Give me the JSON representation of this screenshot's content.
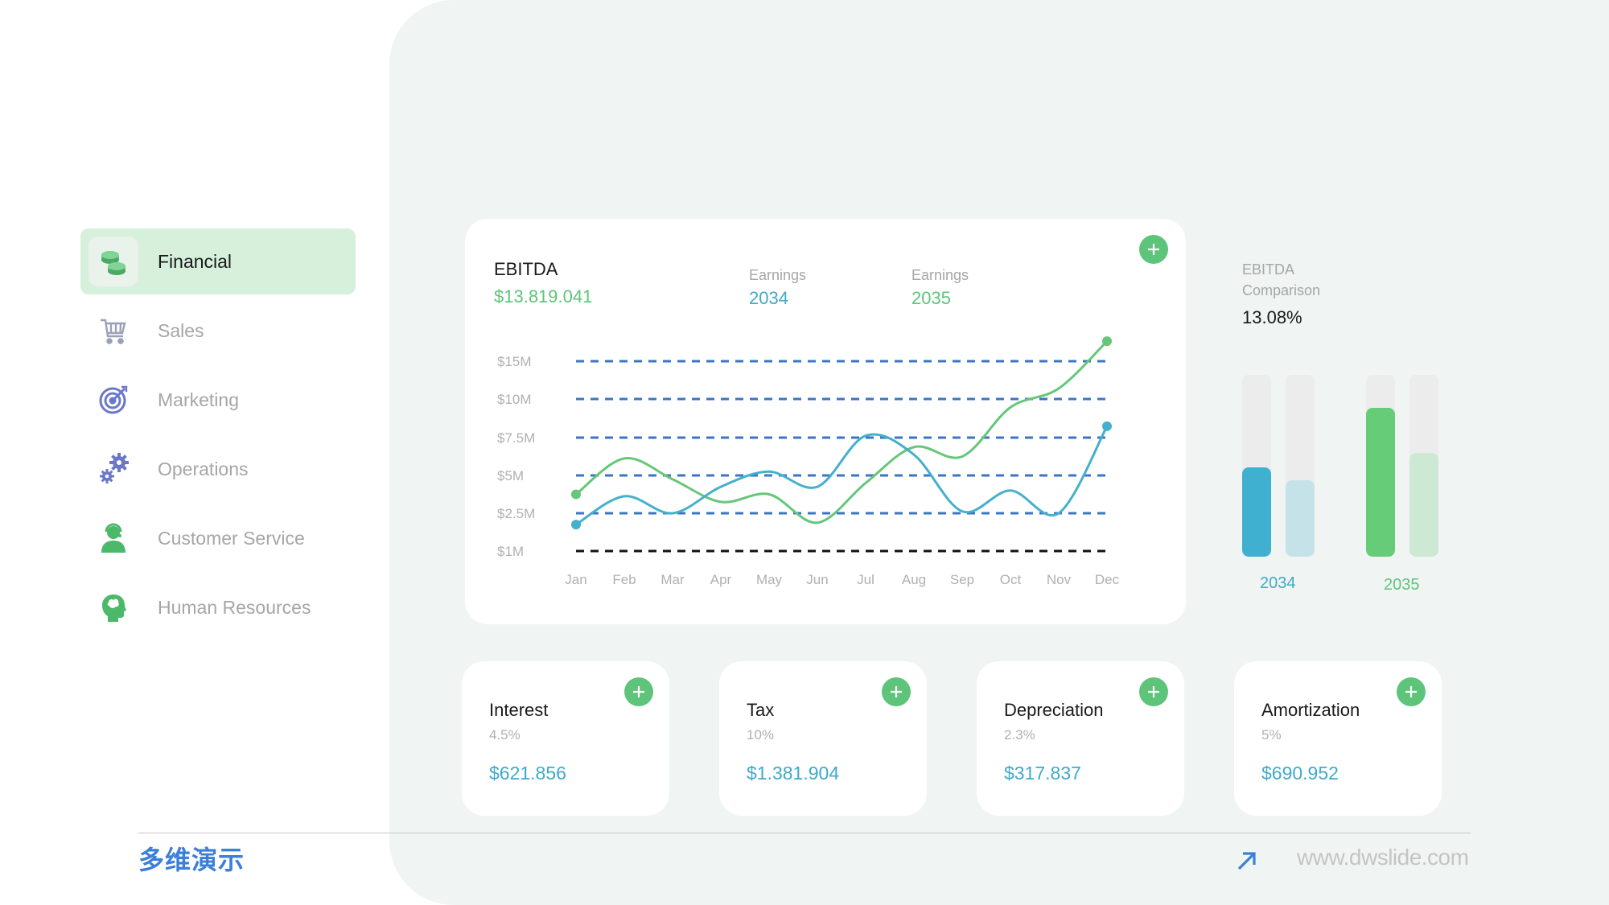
{
  "sidebar": {
    "items": [
      {
        "label": "Financial",
        "icon": "coins-icon",
        "active": true
      },
      {
        "label": "Sales",
        "icon": "cart-icon",
        "active": false
      },
      {
        "label": "Marketing",
        "icon": "target-icon",
        "active": false
      },
      {
        "label": "Operations",
        "icon": "gears-icon",
        "active": false
      },
      {
        "label": "Customer Service",
        "icon": "support-agent-icon",
        "active": false
      },
      {
        "label": "Human Resources",
        "icon": "head-brain-icon",
        "active": false
      }
    ]
  },
  "ebitda_card": {
    "title": "EBITDA",
    "value": "$13.819.041",
    "earnings_2034_label": "Earnings",
    "earnings_2034_year": "2034",
    "earnings_2035_label": "Earnings",
    "earnings_2035_year": "2035"
  },
  "chart_data": {
    "type": "line",
    "x": [
      "Jan",
      "Feb",
      "Mar",
      "Apr",
      "May",
      "Jun",
      "Jul",
      "Aug",
      "Sep",
      "Oct",
      "Nov",
      "Dec"
    ],
    "y_tick_labels": [
      "$1M",
      "$2.5M",
      "$5M",
      "$7.5M",
      "$10M",
      "$15M"
    ],
    "grid": true,
    "series": [
      {
        "name": "2035",
        "color": "#66c67a",
        "values": [
          1,
          2.9,
          1.8,
          0.6,
          1.0,
          -0.5,
          1.6,
          3.5,
          3.0,
          5.6,
          6.6,
          9.1
        ]
      },
      {
        "name": "2034",
        "color": "#45b0cc",
        "values": [
          -0.6,
          0.9,
          0.0,
          1.4,
          2.2,
          1.4,
          4.1,
          3.1,
          0.1,
          1.2,
          0.0,
          4.6
        ]
      }
    ]
  },
  "comparison": {
    "title": "EBITDA Comparison",
    "value": "13.08%",
    "bars": [
      {
        "year": "2034",
        "value": 0.49,
        "compare": 0.42,
        "color": "#3fb0d0",
        "light": "#c5e2e9"
      },
      {
        "year": "2035",
        "value": 0.82,
        "compare": 0.57,
        "color": "#66cc77",
        "light": "#cde9d3"
      }
    ]
  },
  "kpis": [
    {
      "title": "Interest",
      "pct": "4.5%",
      "value": "$621.856"
    },
    {
      "title": "Tax",
      "pct": "10%",
      "value": "$1.381.904"
    },
    {
      "title": "Depreciation",
      "pct": "2.3%",
      "value": "$317.837"
    },
    {
      "title": "Amortization",
      "pct": "5%",
      "value": "$690.952"
    }
  ],
  "footer": {
    "logo": "多维演示",
    "site": "www.dwslide.com"
  },
  "colors": {
    "accent_green": "#5dc47a",
    "accent_blue": "#3fa9c9"
  }
}
